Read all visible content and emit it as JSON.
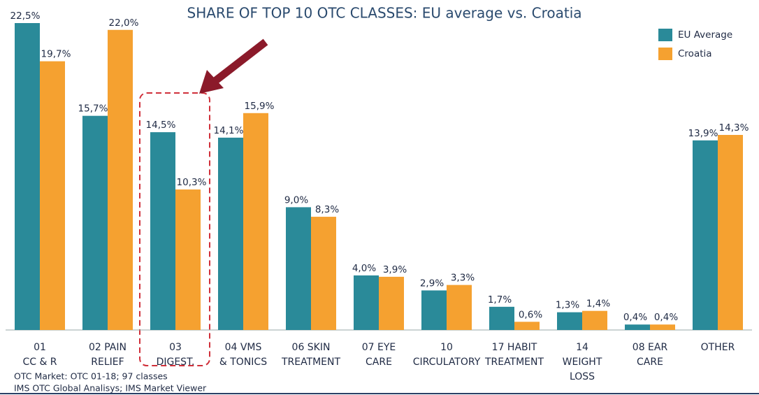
{
  "chart_data": {
    "type": "bar",
    "title": "SHARE OF TOP 10 OTC CLASSES: EU average vs. Croatia",
    "categories": [
      [
        "01",
        "CC & R"
      ],
      [
        "02 PAIN",
        "RELIEF"
      ],
      [
        "03",
        "DIGEST."
      ],
      [
        "04 VMS",
        "& TONICS"
      ],
      [
        "06 SKIN",
        "TREATMENT"
      ],
      [
        "07 EYE",
        "CARE"
      ],
      [
        "10",
        "CIRCULATORY"
      ],
      [
        "17 HABIT",
        "TREATMENT"
      ],
      [
        "14",
        "WEIGHT",
        "LOSS"
      ],
      [
        "08 EAR",
        "CARE"
      ],
      [
        "OTHER"
      ]
    ],
    "series": [
      {
        "name": "EU Average",
        "color": "#2a8a99",
        "values": [
          22.5,
          15.7,
          14.5,
          14.1,
          9.0,
          4.0,
          2.9,
          1.7,
          1.3,
          0.4,
          13.9
        ],
        "value_labels": [
          "22,5%",
          "15,7%",
          "14,5%",
          "14,1%",
          "9,0%",
          "4,0%",
          "2,9%",
          "1,7%",
          "1,3%",
          "0,4%",
          "13,9%"
        ]
      },
      {
        "name": "Croatia",
        "color": "#f5a130",
        "values": [
          19.7,
          22.0,
          10.3,
          15.9,
          8.3,
          3.9,
          3.3,
          0.6,
          1.4,
          0.4,
          14.3
        ],
        "value_labels": [
          "19,7%",
          "22,0%",
          "10,3%",
          "15,9%",
          "8,3%",
          "3,9%",
          "3,3%",
          "0,6%",
          "1,4%",
          "0,4%",
          "14,3%"
        ]
      }
    ],
    "footnotes": [
      "OTC Market: OTC 01-18; 97 classes",
      "IMS OTC Global Analisys; IMS Market Viewer"
    ],
    "legend": "top-right"
  }
}
